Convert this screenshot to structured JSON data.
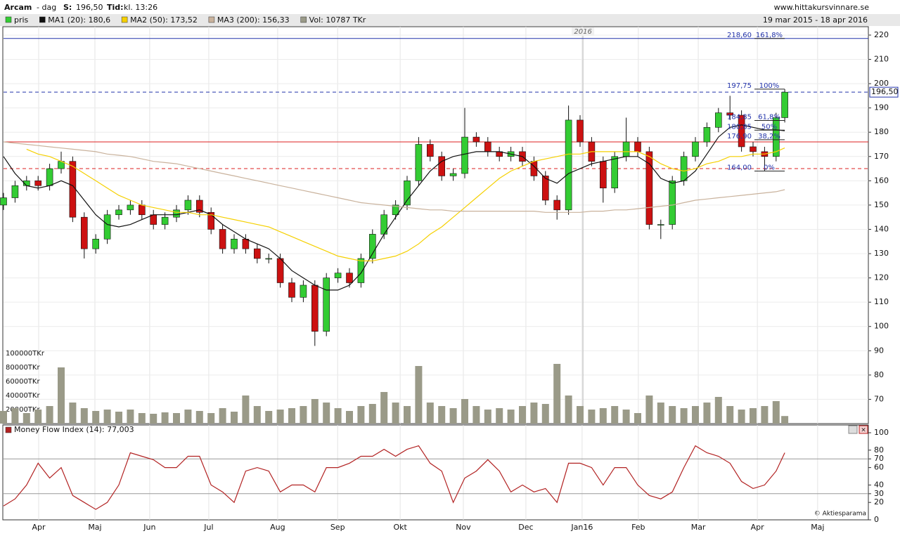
{
  "header": {
    "name": "Arcam",
    "period": "- dag",
    "price_label": "S:",
    "price": "196,50",
    "time_label": "Tid:",
    "time": "kl. 13:26",
    "site": "www.hittakursvinnare.se",
    "date_range": "19 mar 2015 - 18 apr 2016",
    "copyright": "© Aktiesparama"
  },
  "chart_data": [
    {
      "type": "candlestick",
      "x": [
        0,
        4,
        8,
        12,
        16,
        20,
        24,
        28,
        32,
        36,
        40,
        44,
        48,
        52,
        56,
        60,
        64,
        68,
        72,
        76,
        80,
        84,
        88,
        92,
        96,
        100,
        104,
        108,
        112,
        116,
        120,
        124,
        128,
        132,
        136,
        140,
        144,
        148,
        152,
        156,
        160,
        164,
        168,
        172,
        176,
        180,
        184,
        188,
        192,
        196,
        200,
        204,
        208,
        212,
        216,
        220,
        224,
        228,
        232,
        236,
        240,
        244,
        248,
        252,
        256,
        260,
        264,
        268,
        271
      ],
      "xlim": [
        0,
        300
      ],
      "ylim": [
        60,
        222.3
      ],
      "yticks": [
        70,
        80,
        90,
        100,
        110,
        120,
        130,
        140,
        150,
        160,
        170,
        180,
        190,
        200,
        210,
        220
      ],
      "series": [
        {
          "name": "pris",
          "color": "#33cc33",
          "down_color": "#cc1111",
          "open": [
            150,
            153,
            158,
            160,
            158,
            165,
            168,
            145,
            132,
            136,
            146,
            148,
            150,
            146,
            142,
            145,
            148,
            152,
            147,
            140,
            132,
            136,
            132,
            128,
            128,
            118,
            112,
            117,
            98,
            120,
            122,
            118,
            128,
            138,
            146,
            150,
            160,
            175,
            170,
            162,
            163,
            178,
            176,
            172,
            170,
            172,
            168,
            162,
            152,
            148,
            185,
            176,
            168,
            157,
            170,
            176,
            172,
            142,
            142,
            160,
            170,
            176,
            182,
            188,
            187,
            174,
            172,
            170,
            186
          ],
          "high": [
            155,
            160,
            162,
            162,
            167,
            172,
            170,
            147,
            138,
            148,
            150,
            152,
            152,
            148,
            147,
            150,
            154,
            154,
            149,
            142,
            138,
            138,
            134,
            130,
            130,
            120,
            119,
            119,
            122,
            124,
            124,
            130,
            140,
            148,
            152,
            162,
            178,
            177,
            172,
            165,
            190,
            180,
            178,
            174,
            174,
            174,
            170,
            164,
            154,
            191,
            187,
            178,
            170,
            172,
            186,
            178,
            174,
            144,
            162,
            172,
            178,
            184,
            190,
            195,
            189,
            176,
            174,
            188,
            197.75
          ],
          "low": [
            148,
            151,
            156,
            156,
            156,
            163,
            143,
            128,
            130,
            134,
            144,
            146,
            144,
            140,
            140,
            143,
            146,
            145,
            138,
            130,
            130,
            130,
            126,
            126,
            116,
            110,
            110,
            92,
            96,
            118,
            116,
            116,
            126,
            136,
            144,
            148,
            158,
            168,
            160,
            160,
            161,
            174,
            170,
            168,
            168,
            166,
            160,
            150,
            144,
            146,
            174,
            166,
            151,
            155,
            168,
            170,
            140,
            136,
            140,
            158,
            168,
            174,
            180,
            185,
            172,
            170,
            164,
            168,
            184
          ],
          "close": [
            153,
            158,
            160,
            158,
            165,
            168,
            145,
            132,
            136,
            146,
            148,
            150,
            146,
            142,
            145,
            148,
            152,
            147,
            140,
            132,
            136,
            132,
            128,
            128,
            118,
            112,
            117,
            98,
            120,
            122,
            118,
            128,
            138,
            146,
            150,
            160,
            175,
            170,
            162,
            163,
            178,
            176,
            172,
            170,
            172,
            168,
            162,
            152,
            148,
            185,
            176,
            168,
            157,
            170,
            176,
            172,
            142,
            142,
            160,
            170,
            176,
            182,
            188,
            187,
            174,
            172,
            170,
            186,
            196.5
          ]
        },
        {
          "name": "MA1 (20): 180,6",
          "color": "#111111",
          "values": [
            170,
            163,
            158,
            157,
            158,
            160,
            158,
            152,
            146,
            142,
            141,
            142,
            144,
            146,
            146,
            146,
            147,
            148,
            146,
            142,
            139,
            136,
            134,
            132,
            128,
            123,
            120,
            117,
            115,
            115,
            117,
            122,
            130,
            138,
            145,
            152,
            158,
            164,
            168,
            170,
            171,
            172,
            172,
            172,
            171,
            170,
            166,
            161,
            159,
            163,
            165,
            167,
            168,
            169,
            170,
            170,
            167,
            161,
            159,
            160,
            164,
            171,
            178,
            182,
            183,
            182,
            181,
            181,
            180.6
          ]
        },
        {
          "name": "MA2 (50): 173,52",
          "color": "#f5d000",
          "values": [
            null,
            null,
            173,
            171,
            170,
            168,
            166,
            163,
            160,
            157,
            154,
            152,
            150,
            149,
            148,
            147,
            147,
            146,
            146,
            145,
            144,
            143,
            142,
            141,
            139,
            137,
            135,
            133,
            131,
            129,
            128,
            127,
            127,
            128,
            129,
            131,
            134,
            138,
            141,
            145,
            149,
            153,
            157,
            161,
            164,
            166,
            168,
            169,
            170,
            171,
            171,
            172,
            172,
            172,
            172,
            172,
            170,
            167,
            165,
            164,
            165,
            167,
            168,
            170,
            170,
            171,
            171,
            172,
            173.52
          ]
        },
        {
          "name": "MA3 (200): 156,33",
          "color": "#c9b29c",
          "values": [
            176,
            175.5,
            175,
            174.5,
            174,
            173.5,
            173,
            172.5,
            172,
            171,
            170.5,
            170,
            169,
            168,
            167.5,
            167,
            166,
            165,
            164,
            163,
            162,
            161,
            160,
            159,
            158,
            157,
            156,
            155,
            154,
            153,
            152,
            151,
            150.5,
            150,
            149.5,
            149,
            148.5,
            148,
            148,
            147.5,
            147.5,
            147.5,
            147.5,
            147.5,
            147.5,
            147.5,
            147.5,
            147,
            147,
            147,
            147,
            147.5,
            147.5,
            148,
            148,
            148.5,
            149,
            149.5,
            150,
            151,
            152,
            152.5,
            153,
            153.5,
            154,
            154.5,
            155,
            155.5,
            156.33
          ]
        }
      ],
      "hlines": [
        {
          "value": 176,
          "color": "#dd2222",
          "style": "solid"
        },
        {
          "value": 165,
          "color": "#dd2222",
          "style": "dashed"
        },
        {
          "value": 218.6,
          "color": "#2233aa",
          "style": "solid"
        }
      ],
      "price_tag": {
        "value": 196.5,
        "label": "196,50"
      },
      "fib": [
        {
          "value": 218.6,
          "label": "218,60",
          "pct": "161,8%"
        },
        {
          "value": 197.75,
          "label": "197,75",
          "pct": "100%"
        },
        {
          "value": 184.85,
          "label": "184,85",
          "pct": "61,8%"
        },
        {
          "value": 180.85,
          "label": "180,85",
          "pct": "50%"
        },
        {
          "value": 176.9,
          "label": "176,90",
          "pct": "38,2%"
        },
        {
          "value": 164,
          "label": "164,00",
          "pct": "0%"
        }
      ],
      "annotations": [
        {
          "text": "2016",
          "x": 201
        }
      ]
    },
    {
      "type": "bar",
      "x": [
        0,
        4,
        8,
        12,
        16,
        20,
        24,
        28,
        32,
        36,
        40,
        44,
        48,
        52,
        56,
        60,
        64,
        68,
        72,
        76,
        80,
        84,
        88,
        92,
        96,
        100,
        104,
        108,
        112,
        116,
        120,
        124,
        128,
        132,
        136,
        140,
        144,
        148,
        152,
        156,
        160,
        164,
        168,
        172,
        176,
        180,
        184,
        188,
        192,
        196,
        200,
        204,
        208,
        212,
        216,
        220,
        224,
        228,
        232,
        236,
        240,
        244,
        248,
        252,
        256,
        260,
        264,
        268,
        271
      ],
      "xlim": [
        0,
        300
      ],
      "ylim": [
        0,
        100000
      ],
      "yticks": [
        {
          "value": 20000,
          "label": "20000TKr"
        },
        {
          "value": 40000,
          "label": "40000TKr"
        },
        {
          "value": 60000,
          "label": "60000TKr"
        },
        {
          "value": 80000,
          "label": "80000TKr"
        },
        {
          "value": 100000,
          "label": "100000TKr"
        }
      ],
      "series": [
        {
          "name": "Vol: 10787 TKr",
          "color": "#9a9a88",
          "values": [
            18000,
            22000,
            15000,
            20000,
            25000,
            80000,
            30000,
            22000,
            18000,
            20000,
            17000,
            20000,
            15000,
            14000,
            16000,
            15000,
            20000,
            18000,
            15000,
            22000,
            17000,
            40000,
            25000,
            18000,
            20000,
            22000,
            25000,
            35000,
            30000,
            22000,
            18000,
            25000,
            28000,
            45000,
            30000,
            25000,
            82000,
            30000,
            25000,
            22000,
            35000,
            25000,
            20000,
            22000,
            20000,
            25000,
            30000,
            28000,
            85000,
            40000,
            25000,
            20000,
            22000,
            25000,
            20000,
            15000,
            40000,
            30000,
            25000,
            22000,
            25000,
            30000,
            38000,
            25000,
            20000,
            22000,
            25000,
            32000,
            10787
          ]
        }
      ]
    },
    {
      "type": "line",
      "title": "Money Flow Index (14): 77,003",
      "x": [
        0,
        4,
        8,
        12,
        16,
        20,
        24,
        28,
        32,
        36,
        40,
        44,
        48,
        52,
        56,
        60,
        64,
        68,
        72,
        76,
        80,
        84,
        88,
        92,
        96,
        100,
        104,
        108,
        112,
        116,
        120,
        124,
        128,
        132,
        136,
        140,
        144,
        148,
        152,
        156,
        160,
        164,
        168,
        172,
        176,
        180,
        184,
        188,
        192,
        196,
        200,
        204,
        208,
        212,
        216,
        220,
        224,
        228,
        232,
        236,
        240,
        244,
        248,
        252,
        256,
        260,
        264,
        268,
        271
      ],
      "xlim": [
        0,
        300
      ],
      "ylim": [
        0,
        100
      ],
      "yticks": [
        0,
        20,
        30,
        40,
        60,
        70,
        80,
        100
      ],
      "bands": [
        70,
        30
      ],
      "xticks": [
        {
          "value": 12.2,
          "label": "Apr"
        },
        {
          "value": 31.7,
          "label": "Maj"
        },
        {
          "value": 50.7,
          "label": "Jun"
        },
        {
          "value": 71.2,
          "label": "Jul"
        },
        {
          "value": 95.1,
          "label": "Aug"
        },
        {
          "value": 115.9,
          "label": "Sep"
        },
        {
          "value": 137.6,
          "label": "Okt"
        },
        {
          "value": 159.5,
          "label": "Nov"
        },
        {
          "value": 181.2,
          "label": "Dec"
        },
        {
          "value": 200.7,
          "label": "Jan16"
        },
        {
          "value": 220.2,
          "label": "Feb"
        },
        {
          "value": 241,
          "label": "Mar"
        },
        {
          "value": 261.5,
          "label": "Apr"
        },
        {
          "value": 282.4,
          "label": "Maj"
        }
      ],
      "series": [
        {
          "name": "Money Flow Index",
          "color": "#b22222",
          "values": [
            16,
            24,
            40,
            65,
            48,
            60,
            28,
            20,
            12,
            20,
            40,
            77,
            73,
            69,
            60,
            60,
            73,
            73,
            40,
            32,
            20,
            56,
            60,
            56,
            32,
            40,
            40,
            32,
            60,
            60,
            65,
            73,
            73,
            81,
            73,
            81,
            85,
            65,
            56,
            20,
            48,
            56,
            69,
            56,
            32,
            40,
            32,
            36,
            20,
            65,
            65,
            60,
            40,
            60,
            60,
            40,
            28,
            24,
            32,
            60,
            85,
            77,
            73,
            65,
            44,
            36,
            40,
            56,
            77.003
          ]
        }
      ]
    }
  ]
}
